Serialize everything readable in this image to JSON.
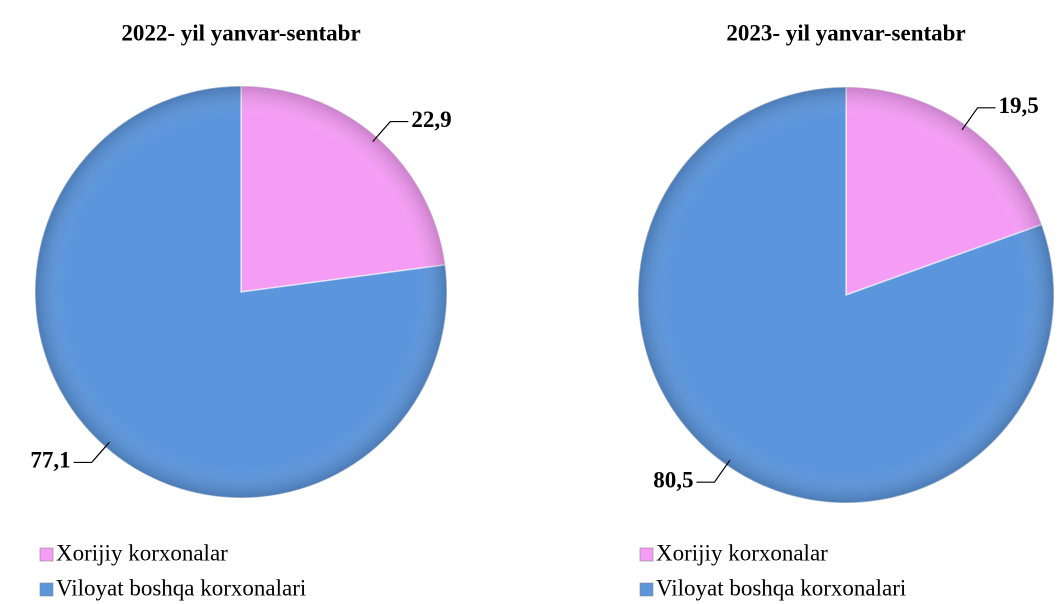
{
  "chart_data": [
    {
      "type": "pie",
      "title": "2022- yil yanvar-sentabr",
      "categories": [
        "Xorijiy korxonalar",
        "Viloyat boshqa korxonalari"
      ],
      "values": [
        22.9,
        77.1
      ],
      "value_labels": [
        "22,9",
        "77,1"
      ],
      "colors": [
        "#f59cf5",
        "#5b95dc"
      ]
    },
    {
      "type": "pie",
      "title": "2023- yil yanvar-sentabr",
      "categories": [
        "Xorijiy korxonalar",
        "Viloyat boshqa korxonalari"
      ],
      "values": [
        19.5,
        80.5
      ],
      "value_labels": [
        "19,5",
        "80,5"
      ],
      "colors": [
        "#f59cf5",
        "#5b95dc"
      ]
    }
  ]
}
